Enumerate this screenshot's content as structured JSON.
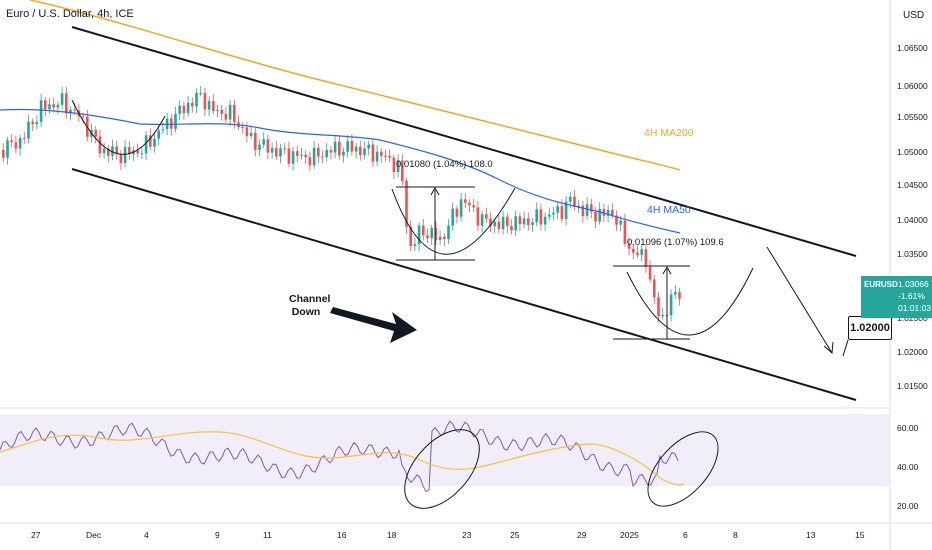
{
  "header": {
    "title": "Euro / U.S. Dollar, 4h, ICE",
    "currency": "USD"
  },
  "price_axis": {
    "labels": [
      "1.06500",
      "1.06000",
      "1.05500",
      "1.05000",
      "1.04500",
      "1.04000",
      "1.03500",
      "1.02500",
      "1.02000",
      "1.01500"
    ]
  },
  "rsi_axis": {
    "labels": [
      "60.00",
      "40.00",
      "20.00"
    ]
  },
  "time_axis": {
    "labels": [
      "27",
      "Dec",
      "4",
      "9",
      "11",
      "16",
      "18",
      "23",
      "25",
      "29",
      "2025",
      "6",
      "8",
      "13",
      "15"
    ]
  },
  "last_price": {
    "symbol": "EURUSD",
    "price": "1.03066",
    "change": "-1.61%",
    "countdown": "01:01:03",
    "color": "#26a69a"
  },
  "annotations": {
    "ma200_label": "4H MA200",
    "ma50_label": "4H MA50",
    "measure1": "0.01080 (1.04%) 108.0",
    "measure2": "0.01096 (1.07%) 109.6",
    "channel_label_line1": "Channel",
    "channel_label_line2": "Down",
    "target": "1.02000"
  },
  "colors": {
    "up": "#26a69a",
    "down": "#ef5350",
    "ma200": "#f5a623",
    "ma50": "#2962ff",
    "rsi": "#7e57c2",
    "rsi_ma": "#f5c242"
  }
}
